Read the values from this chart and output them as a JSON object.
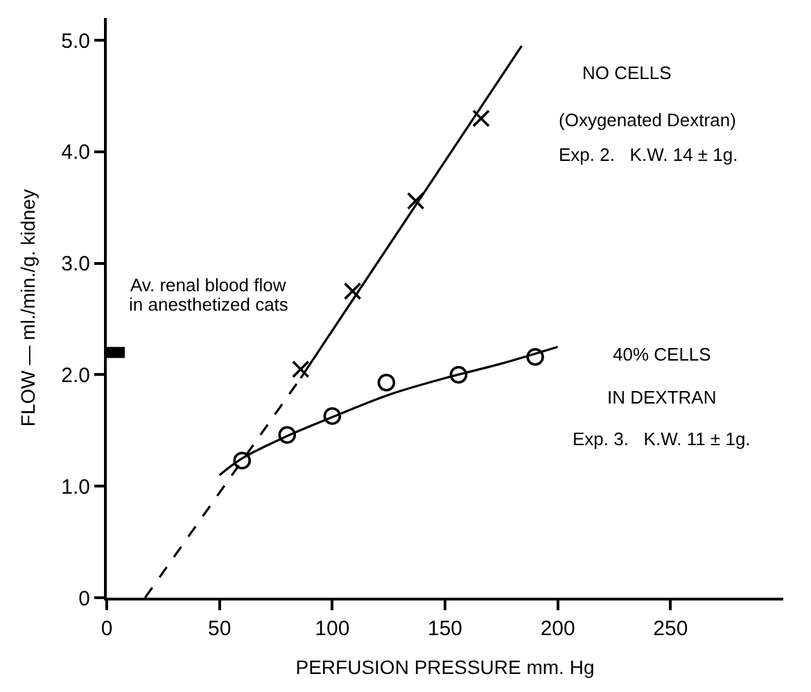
{
  "chart_data": {
    "type": "line",
    "xlabel": "PERFUSION PRESSURE mm. Hg",
    "ylabel": "FLOW — ml./min./g. kidney",
    "xlim": [
      0,
      300
    ],
    "ylim": [
      0,
      5.2
    ],
    "xticks": [
      0,
      50,
      100,
      150,
      200,
      250
    ],
    "yticks": [
      0,
      {
        "value": 1,
        "label": "1.0"
      },
      {
        "value": 2,
        "label": "2.0"
      },
      {
        "value": 3,
        "label": "3.0"
      },
      {
        "value": 4,
        "label": "4.0"
      },
      {
        "value": 5,
        "label": "5.0"
      }
    ],
    "series": [
      {
        "color": "#000000",
        "line_style": "dashed",
        "marker": "none",
        "x": [
          17,
          86
        ],
        "values": [
          0,
          1.97
        ]
      },
      {
        "color": "#000000",
        "line_style": "solid",
        "marker": "none",
        "x": [
          86,
          184
        ],
        "values": [
          1.97,
          4.95
        ]
      },
      {
        "type": "scatter",
        "color": "#000000",
        "marker": "cross",
        "x": [
          86,
          109,
          137,
          166
        ],
        "values": [
          2.05,
          2.75,
          3.56,
          4.3
        ]
      },
      {
        "color": "#000000",
        "line_style": "solid",
        "marker": "none",
        "x": [
          50,
          60,
          80,
          100,
          125,
          150,
          175,
          200
        ],
        "values": [
          1.1,
          1.25,
          1.45,
          1.62,
          1.82,
          1.97,
          2.1,
          2.25
        ]
      },
      {
        "type": "scatter",
        "color": "#000000",
        "marker": "circle",
        "x": [
          60,
          80,
          100,
          124,
          156,
          190
        ],
        "values": [
          1.23,
          1.46,
          1.63,
          1.93,
          2.0,
          2.16
        ]
      },
      {
        "color": "#000000",
        "line_style": "solid",
        "marker": "none",
        "x": [
          0,
          8
        ],
        "values": [
          2.2,
          2.2
        ]
      }
    ],
    "annotations": [
      "NO CELLS",
      "(Oxygenated Dextran)",
      "Exp. 2.   K.W. 14 ± 1g.",
      "40% CELLS",
      "IN DEXTRAN",
      "Exp. 3.   K.W. 11 ± 1g.",
      "Av. renal blood flow",
      "in anesthetized cats"
    ]
  }
}
